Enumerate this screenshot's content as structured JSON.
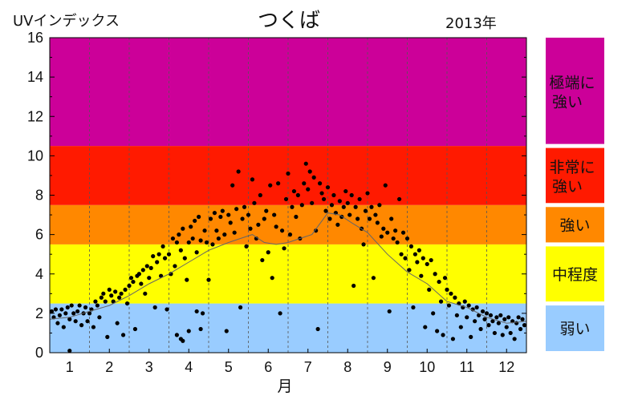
{
  "chart_data": {
    "type": "scatter",
    "title": "つくば",
    "year_label": "2013年",
    "ylabel": "UVインデックス",
    "xlabel": "月",
    "ylim": [
      0,
      16
    ],
    "xlim": [
      0.5,
      12.5
    ],
    "yticks": [
      0,
      2,
      4,
      6,
      8,
      10,
      12,
      14,
      16
    ],
    "yticklabels": [
      "0",
      "2",
      "4",
      "6",
      "8",
      "10",
      "12",
      "14",
      "16"
    ],
    "xticks": [
      1,
      2,
      3,
      4,
      5,
      6,
      7,
      8,
      9,
      10,
      11,
      12
    ],
    "xticklabels": [
      "1",
      "2",
      "3",
      "4",
      "5",
      "6",
      "7",
      "8",
      "9",
      "10",
      "11",
      "12"
    ],
    "bands": [
      {
        "from": 0,
        "to": 2.5,
        "color": "#99ccff",
        "label": "弱い"
      },
      {
        "from": 2.5,
        "to": 5.5,
        "color": "#ffff00",
        "label": "中程度"
      },
      {
        "from": 5.5,
        "to": 7.5,
        "color": "#ff8800",
        "label": "強い"
      },
      {
        "from": 7.5,
        "to": 10.5,
        "color": "#ff1a00",
        "label": "非常に強い"
      },
      {
        "from": 10.5,
        "to": 16,
        "color": "#cc0099",
        "label": "極端に強い"
      }
    ],
    "series": [
      {
        "kind": "points",
        "color": "#000000",
        "points": [
          [
            0.55,
            2.1
          ],
          [
            0.6,
            1.8
          ],
          [
            0.65,
            2.2
          ],
          [
            0.7,
            1.5
          ],
          [
            0.75,
            1.9
          ],
          [
            0.8,
            2.2
          ],
          [
            0.85,
            1.3
          ],
          [
            0.9,
            2.0
          ],
          [
            0.95,
            2.3
          ],
          [
            1.0,
            1.7
          ],
          [
            1.0,
            0.1
          ],
          [
            1.05,
            2.4
          ],
          [
            1.1,
            2.0
          ],
          [
            1.15,
            1.6
          ],
          [
            1.2,
            2.1
          ],
          [
            1.25,
            2.4
          ],
          [
            1.3,
            1.4
          ],
          [
            1.35,
            2.0
          ],
          [
            1.4,
            2.3
          ],
          [
            1.45,
            1.6
          ],
          [
            1.5,
            2.0
          ],
          [
            1.55,
            2.2
          ],
          [
            1.6,
            1.3
          ],
          [
            1.65,
            2.6
          ],
          [
            1.7,
            2.4
          ],
          [
            1.75,
            1.8
          ],
          [
            1.8,
            2.8
          ],
          [
            1.85,
            3.0
          ],
          [
            1.9,
            2.6
          ],
          [
            1.95,
            0.8
          ],
          [
            2.0,
            3.2
          ],
          [
            2.05,
            2.9
          ],
          [
            2.1,
            2.6
          ],
          [
            2.15,
            3.1
          ],
          [
            2.2,
            1.5
          ],
          [
            2.25,
            2.8
          ],
          [
            2.3,
            3.0
          ],
          [
            2.35,
            0.9
          ],
          [
            2.4,
            3.2
          ],
          [
            2.45,
            2.5
          ],
          [
            2.5,
            3.4
          ],
          [
            2.55,
            3.8
          ],
          [
            2.6,
            3.6
          ],
          [
            2.65,
            1.2
          ],
          [
            2.7,
            3.9
          ],
          [
            2.75,
            4.0
          ],
          [
            2.8,
            3.5
          ],
          [
            2.85,
            4.2
          ],
          [
            2.9,
            3.0
          ],
          [
            2.95,
            4.4
          ],
          [
            3.0,
            3.8
          ],
          [
            3.05,
            4.3
          ],
          [
            3.1,
            4.9
          ],
          [
            3.15,
            2.3
          ],
          [
            3.2,
            4.6
          ],
          [
            3.25,
            5.0
          ],
          [
            3.3,
            3.9
          ],
          [
            3.35,
            5.4
          ],
          [
            3.4,
            4.8
          ],
          [
            3.45,
            2.2
          ],
          [
            3.5,
            5.0
          ],
          [
            3.55,
            4.0
          ],
          [
            3.6,
            5.8
          ],
          [
            3.65,
            4.4
          ],
          [
            3.7,
            5.6
          ],
          [
            3.75,
            6.0
          ],
          [
            3.8,
            5.2
          ],
          [
            3.85,
            6.3
          ],
          [
            3.9,
            4.8
          ],
          [
            3.95,
            3.7
          ],
          [
            4.0,
            5.6
          ],
          [
            4.05,
            6.4
          ],
          [
            4.1,
            5.8
          ],
          [
            4.15,
            6.7
          ],
          [
            4.2,
            5.1
          ],
          [
            4.25,
            6.9
          ],
          [
            4.3,
            5.7
          ],
          [
            4.35,
            2.0
          ],
          [
            4.4,
            6.2
          ],
          [
            4.45,
            5.6
          ],
          [
            3.7,
            0.9
          ],
          [
            3.8,
            0.7
          ],
          [
            3.85,
            0.6
          ],
          [
            4.0,
            1.1
          ],
          [
            4.2,
            2.1
          ],
          [
            4.3,
            1.2
          ],
          [
            4.5,
            3.7
          ],
          [
            4.55,
            6.8
          ],
          [
            4.6,
            5.5
          ],
          [
            4.65,
            7.1
          ],
          [
            4.7,
            6.2
          ],
          [
            4.75,
            5.8
          ],
          [
            4.8,
            6.9
          ],
          [
            4.85,
            7.2
          ],
          [
            4.9,
            6.0
          ],
          [
            4.95,
            1.1
          ],
          [
            5.0,
            7.0
          ],
          [
            5.05,
            6.6
          ],
          [
            5.1,
            8.5
          ],
          [
            5.15,
            6.1
          ],
          [
            5.2,
            7.3
          ],
          [
            5.25,
            9.2
          ],
          [
            5.3,
            2.3
          ],
          [
            5.35,
            6.8
          ],
          [
            5.4,
            7.4
          ],
          [
            5.45,
            5.4
          ],
          [
            5.5,
            7.0
          ],
          [
            5.55,
            6.3
          ],
          [
            5.6,
            8.8
          ],
          [
            5.65,
            7.6
          ],
          [
            5.7,
            5.8
          ],
          [
            5.75,
            6.5
          ],
          [
            5.8,
            8.0
          ],
          [
            5.85,
            4.7
          ],
          [
            5.9,
            6.8
          ],
          [
            5.95,
            7.2
          ],
          [
            6.0,
            5.1
          ],
          [
            6.05,
            8.5
          ],
          [
            6.1,
            3.8
          ],
          [
            6.15,
            7.0
          ],
          [
            6.2,
            6.4
          ],
          [
            6.25,
            8.6
          ],
          [
            6.3,
            2.0
          ],
          [
            6.35,
            6.2
          ],
          [
            6.4,
            5.3
          ],
          [
            6.45,
            7.8
          ],
          [
            6.5,
            9.1
          ],
          [
            6.55,
            6.0
          ],
          [
            6.6,
            7.4
          ],
          [
            6.65,
            8.2
          ],
          [
            6.7,
            6.9
          ],
          [
            6.75,
            8.0
          ],
          [
            6.8,
            5.8
          ],
          [
            6.85,
            7.5
          ],
          [
            6.9,
            8.6
          ],
          [
            6.95,
            9.6
          ],
          [
            7.0,
            8.3
          ],
          [
            7.05,
            9.2
          ],
          [
            7.1,
            7.6
          ],
          [
            7.15,
            8.9
          ],
          [
            7.2,
            6.2
          ],
          [
            7.25,
            1.2
          ],
          [
            7.3,
            8.6
          ],
          [
            7.35,
            8.1
          ],
          [
            7.4,
            7.8
          ],
          [
            7.45,
            7.2
          ],
          [
            7.5,
            8.4
          ],
          [
            7.55,
            6.8
          ],
          [
            7.6,
            7.5
          ],
          [
            7.65,
            8.0
          ],
          [
            7.7,
            7.1
          ],
          [
            7.75,
            6.5
          ],
          [
            7.8,
            7.7
          ],
          [
            7.85,
            6.9
          ],
          [
            7.9,
            7.4
          ],
          [
            7.95,
            8.2
          ],
          [
            8.0,
            7.6
          ],
          [
            8.05,
            7.0
          ],
          [
            8.1,
            8.0
          ],
          [
            8.15,
            3.4
          ],
          [
            8.2,
            7.4
          ],
          [
            8.25,
            6.8
          ],
          [
            8.3,
            7.8
          ],
          [
            8.35,
            6.3
          ],
          [
            8.4,
            5.5
          ],
          [
            8.45,
            7.2
          ],
          [
            8.5,
            8.1
          ],
          [
            8.55,
            6.8
          ],
          [
            8.6,
            7.4
          ],
          [
            8.65,
            3.8
          ],
          [
            8.7,
            7.0
          ],
          [
            8.75,
            6.6
          ],
          [
            8.8,
            7.5
          ],
          [
            8.85,
            5.9
          ],
          [
            8.9,
            6.3
          ],
          [
            8.95,
            8.5
          ],
          [
            9.0,
            6.1
          ],
          [
            9.05,
            2.1
          ],
          [
            9.1,
            6.8
          ],
          [
            9.15,
            5.8
          ],
          [
            9.2,
            6.2
          ],
          [
            9.25,
            5.6
          ],
          [
            9.3,
            7.8
          ],
          [
            9.35,
            5.0
          ],
          [
            9.4,
            6.1
          ],
          [
            9.45,
            4.8
          ],
          [
            9.5,
            5.8
          ],
          [
            9.55,
            4.2
          ],
          [
            9.6,
            5.4
          ],
          [
            9.65,
            2.3
          ],
          [
            9.7,
            5.0
          ],
          [
            9.75,
            4.6
          ],
          [
            9.8,
            5.2
          ],
          [
            9.85,
            3.9
          ],
          [
            9.9,
            4.8
          ],
          [
            9.95,
            1.3
          ],
          [
            10.0,
            4.5
          ],
          [
            10.05,
            3.2
          ],
          [
            10.1,
            4.7
          ],
          [
            10.15,
            2.0
          ],
          [
            10.2,
            4.0
          ],
          [
            10.25,
            1.1
          ],
          [
            10.3,
            3.6
          ],
          [
            10.35,
            2.6
          ],
          [
            10.4,
            0.9
          ],
          [
            10.45,
            3.8
          ],
          [
            10.5,
            3.2
          ],
          [
            10.55,
            2.4
          ],
          [
            10.6,
            3.0
          ],
          [
            10.65,
            0.7
          ],
          [
            10.7,
            2.8
          ],
          [
            10.75,
            1.9
          ],
          [
            10.8,
            2.5
          ],
          [
            10.85,
            1.3
          ],
          [
            10.9,
            2.3
          ],
          [
            10.95,
            2.6
          ],
          [
            11.0,
            1.8
          ],
          [
            11.05,
            2.4
          ],
          [
            11.1,
            0.8
          ],
          [
            11.15,
            2.2
          ],
          [
            11.2,
            1.6
          ],
          [
            11.25,
            2.3
          ],
          [
            11.3,
            1.9
          ],
          [
            11.35,
            1.2
          ],
          [
            11.4,
            2.1
          ],
          [
            11.45,
            1.7
          ],
          [
            11.5,
            2.0
          ],
          [
            11.55,
            1.4
          ],
          [
            11.6,
            1.9
          ],
          [
            11.65,
            1.6
          ],
          [
            11.7,
            1.0
          ],
          [
            11.75,
            1.8
          ],
          [
            11.8,
            1.5
          ],
          [
            11.85,
            1.9
          ],
          [
            11.9,
            0.9
          ],
          [
            11.95,
            1.7
          ],
          [
            12.0,
            1.3
          ],
          [
            12.05,
            1.8
          ],
          [
            12.1,
            1.0
          ],
          [
            12.15,
            1.6
          ],
          [
            12.2,
            0.7
          ],
          [
            12.25,
            1.5
          ],
          [
            12.3,
            1.8
          ],
          [
            12.35,
            1.2
          ],
          [
            12.4,
            1.7
          ],
          [
            12.45,
            1.4
          ]
        ]
      },
      {
        "kind": "line",
        "color": "#666666",
        "points": [
          [
            0.5,
            1.7
          ],
          [
            1.0,
            1.8
          ],
          [
            1.5,
            2.1
          ],
          [
            2.0,
            2.4
          ],
          [
            2.5,
            2.9
          ],
          [
            3.0,
            3.5
          ],
          [
            3.5,
            4.0
          ],
          [
            4.0,
            4.6
          ],
          [
            4.5,
            5.2
          ],
          [
            5.0,
            5.6
          ],
          [
            5.3,
            5.8
          ],
          [
            5.6,
            6.0
          ],
          [
            5.9,
            5.6
          ],
          [
            6.2,
            5.5
          ],
          [
            6.5,
            5.6
          ],
          [
            6.8,
            5.8
          ],
          [
            7.1,
            6.0
          ],
          [
            7.5,
            7.1
          ],
          [
            7.8,
            7.0
          ],
          [
            8.1,
            6.6
          ],
          [
            8.5,
            6.1
          ],
          [
            9.0,
            5.0
          ],
          [
            9.5,
            4.1
          ],
          [
            10.0,
            3.5
          ],
          [
            10.5,
            2.6
          ],
          [
            11.0,
            2.3
          ],
          [
            11.5,
            1.8
          ],
          [
            12.0,
            1.5
          ],
          [
            12.5,
            1.6
          ]
        ]
      }
    ]
  }
}
